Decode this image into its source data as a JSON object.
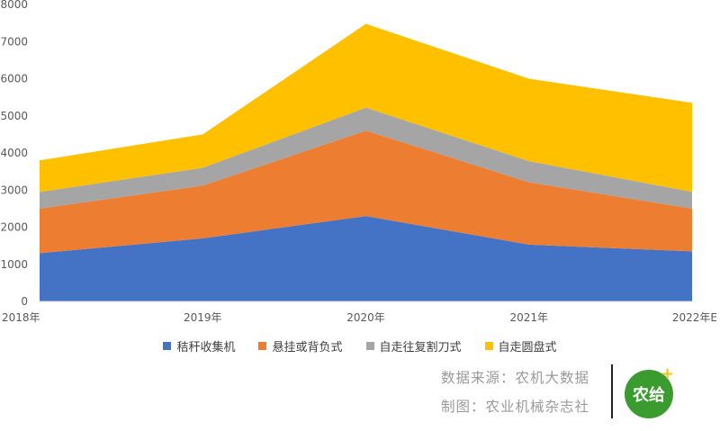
{
  "chart_data": {
    "type": "area",
    "stacked": true,
    "categories": [
      "2018年",
      "2019年",
      "2020年",
      "2021年",
      "2022年E"
    ],
    "ylim": [
      0,
      8000
    ],
    "yticks": [
      0,
      1000,
      2000,
      3000,
      4000,
      5000,
      6000,
      7000,
      8000
    ],
    "grid": false,
    "legend_position": "bottom",
    "series": [
      {
        "name": "秸秆收集机",
        "color": "#4472c4",
        "values": [
          1300,
          1700,
          2300,
          1530,
          1350
        ]
      },
      {
        "name": "悬挂或背负式",
        "color": "#ed7d31",
        "values": [
          1200,
          1420,
          2300,
          1680,
          1150
        ]
      },
      {
        "name": "自走往复割刀式",
        "color": "#a5a5a5",
        "values": [
          450,
          480,
          620,
          570,
          450
        ]
      },
      {
        "name": "自走圆盘式",
        "color": "#ffc000",
        "values": [
          850,
          900,
          2260,
          2220,
          2400
        ]
      }
    ]
  },
  "footer": {
    "source": "数据来源：农机大数据",
    "credit": "制图：农业机械杂志社",
    "logo_text": "农给",
    "logo_plus": "+"
  }
}
